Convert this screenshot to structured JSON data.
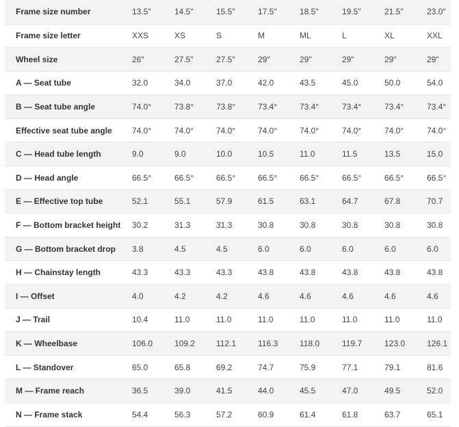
{
  "geometry": {
    "rows": [
      {
        "label": "Frame size number",
        "values": [
          "13.5\"",
          "14.5\"",
          "15.5\"",
          "17.5\"",
          "18.5\"",
          "19.5\"",
          "21.5\"",
          "23.0\""
        ]
      },
      {
        "label": "Frame size letter",
        "values": [
          "XXS",
          "XS",
          "S",
          "M",
          "ML",
          "L",
          "XL",
          "XXL"
        ]
      },
      {
        "label": "Wheel size",
        "values": [
          "26\"",
          "27.5\"",
          "27.5\"",
          "29\"",
          "29\"",
          "29\"",
          "29\"",
          "29\""
        ]
      },
      {
        "label": "A — Seat tube",
        "values": [
          "32.0",
          "34.0",
          "37.0",
          "42.0",
          "43.5",
          "45.0",
          "50.0",
          "54.0"
        ]
      },
      {
        "label": "B — Seat tube angle",
        "values": [
          "74.0°",
          "73.8°",
          "73.8°",
          "73.4°",
          "73.4°",
          "73.4°",
          "73.4°",
          "73.4°"
        ]
      },
      {
        "label": "Effective seat tube angle",
        "values": [
          "74.0°",
          "74.0°",
          "74.0°",
          "74.0°",
          "74.0°",
          "74.0°",
          "74.0°",
          "74.0°"
        ]
      },
      {
        "label": "C — Head tube length",
        "values": [
          "9.0",
          "9.0",
          "10.0",
          "10.5",
          "11.0",
          "11.5",
          "13.5",
          "15.0"
        ]
      },
      {
        "label": "D — Head angle",
        "values": [
          "66.5°",
          "66.5°",
          "66.5°",
          "66.5°",
          "66.5°",
          "66.5°",
          "66.5°",
          "66.5°"
        ]
      },
      {
        "label": "E — Effective top tube",
        "values": [
          "52.1",
          "55.1",
          "57.9",
          "61.5",
          "63.1",
          "64.7",
          "67.8",
          "70.7"
        ]
      },
      {
        "label": "F — Bottom bracket height",
        "values": [
          "30.2",
          "31.3",
          "31.3",
          "30.8",
          "30.8",
          "30.8",
          "30.8",
          "30.8"
        ]
      },
      {
        "label": "G — Bottom bracket drop",
        "values": [
          "3.8",
          "4.5",
          "4.5",
          "6.0",
          "6.0",
          "6.0",
          "6.0",
          "6.0"
        ]
      },
      {
        "label": "H — Chainstay length",
        "values": [
          "43.3",
          "43.3",
          "43.3",
          "43.8",
          "43.8",
          "43.8",
          "43.8",
          "43.8"
        ]
      },
      {
        "label": "I — Offset",
        "values": [
          "4.0",
          "4.2",
          "4.2",
          "4.6",
          "4.6",
          "4.6",
          "4.6",
          "4.6"
        ]
      },
      {
        "label": "J — Trail",
        "values": [
          "10.4",
          "11.0",
          "11.0",
          "11.0",
          "11.0",
          "11.0",
          "11.0",
          "11.0"
        ]
      },
      {
        "label": "K — Wheelbase",
        "values": [
          "106.0",
          "109.2",
          "112.1",
          "116.3",
          "118.0",
          "119.7",
          "123.0",
          "126.1"
        ]
      },
      {
        "label": "L — Standover",
        "values": [
          "65.0",
          "65.8",
          "69.2",
          "74.7",
          "75.9",
          "77.1",
          "79.1",
          "81.6"
        ]
      },
      {
        "label": "M — Frame reach",
        "values": [
          "36.5",
          "39.0",
          "41.5",
          "44.0",
          "45.5",
          "47.0",
          "49.5",
          "52.0"
        ]
      },
      {
        "label": "N — Frame stack",
        "values": [
          "54.4",
          "56.3",
          "57.2",
          "60.9",
          "61.4",
          "61.8",
          "63.7",
          "65.1"
        ]
      }
    ]
  },
  "colors": {
    "row_shade": "#f3f3f3",
    "row_plain": "#ffffff",
    "divider": "#e6e6e6"
  }
}
